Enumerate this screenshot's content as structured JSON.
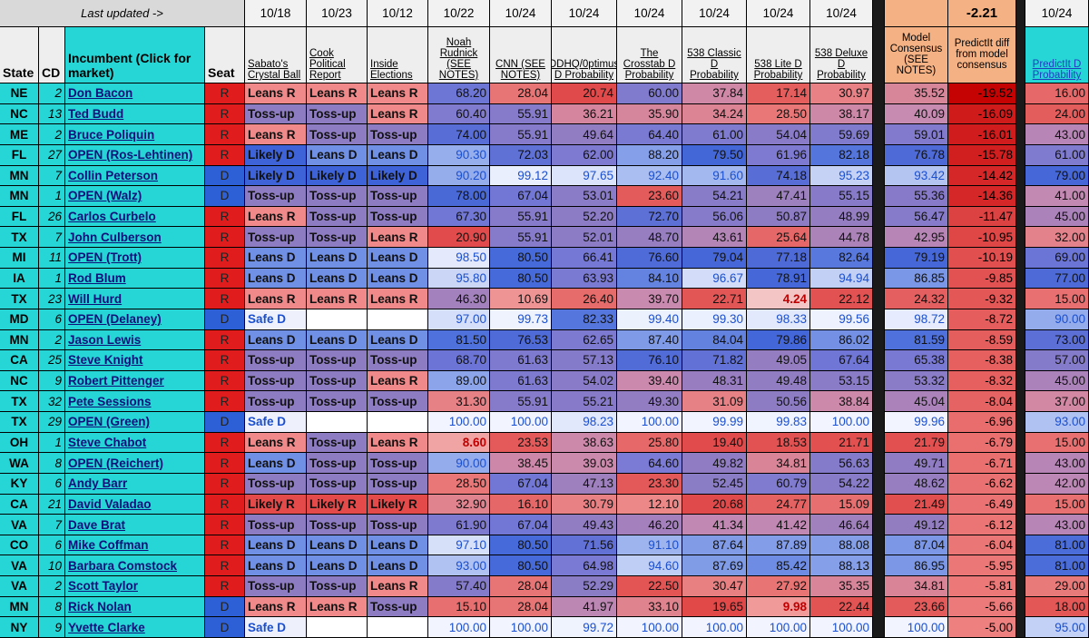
{
  "header": {
    "last_updated": "Last updated ->",
    "source_dates": [
      "10/18",
      "10/23",
      "10/12",
      "10/22",
      "10/24",
      "10/24",
      "10/24",
      "10/24",
      "10/24",
      "10/24"
    ],
    "consensus_diff": -2.21,
    "predictit_date": "10/24"
  },
  "columns": [
    "State",
    "CD",
    "Incumbent (Click for market)",
    "Seat",
    "Sabato's Crystal Ball",
    "Cook Political Report",
    "Inside Elections",
    "Noah Rudnick (SEE NOTES)",
    "CNN (SEE NOTES)",
    "DDHQ/0ptimus D Probability",
    "The Crosstab D Probability",
    "538 Classic D Probability",
    "538 Lite D Probability",
    "538 Deluxe D Probability",
    "Model Consensus (SEE NOTES)",
    "PredictIt diff from model consensus",
    "PredictIt D Probability"
  ],
  "rows": [
    [
      "NE",
      2,
      "Don Bacon",
      "R",
      "Leans R",
      "Leans R",
      "Leans R",
      "68.20",
      "28.04",
      "20.74",
      "60.00",
      "37.84",
      "17.14",
      "30.97",
      "35.52",
      "-19.52",
      "16.00"
    ],
    [
      "NC",
      13,
      "Ted Budd",
      "R",
      "Toss-up",
      "Toss-up",
      "Leans R",
      "60.40",
      "55.91",
      "36.21",
      "35.90",
      "34.24",
      "28.50",
      "38.17",
      "40.09",
      "-16.09",
      "24.00"
    ],
    [
      "ME",
      2,
      "Bruce Poliquin",
      "R",
      "Leans R",
      "Toss-up",
      "Toss-up",
      "74.00",
      "55.91",
      "49.64",
      "64.40",
      "61.00",
      "54.04",
      "59.69",
      "59.01",
      "-16.01",
      "43.00"
    ],
    [
      "FL",
      27,
      "OPEN (Ros-Lehtinen)",
      "R",
      "Likely D",
      "Leans D",
      "Leans D",
      "90.30",
      "72.03",
      "62.00",
      "88.20",
      "79.50",
      "61.96",
      "82.18",
      "76.78",
      "-15.78",
      "61.00"
    ],
    [
      "MN",
      7,
      "Collin Peterson",
      "D",
      "Likely D",
      "Likely D",
      "Likely D",
      "90.20",
      "99.12",
      "97.65",
      "92.40",
      "91.60",
      "74.18",
      "95.23",
      "93.42",
      "-14.42",
      "79.00"
    ],
    [
      "MN",
      1,
      "OPEN (Walz)",
      "D",
      "Toss-up",
      "Toss-up",
      "Toss-up",
      "78.00",
      "67.04",
      "53.01",
      "23.60",
      "54.21",
      "47.41",
      "55.15",
      "55.36",
      "-14.36",
      "41.00"
    ],
    [
      "FL",
      26,
      "Carlos Curbelo",
      "R",
      "Leans R",
      "Toss-up",
      "Toss-up",
      "67.30",
      "55.91",
      "52.20",
      "72.70",
      "56.06",
      "50.87",
      "48.99",
      "56.47",
      "-11.47",
      "45.00"
    ],
    [
      "TX",
      7,
      "John Culberson",
      "R",
      "Toss-up",
      "Toss-up",
      "Leans R",
      "20.90",
      "55.91",
      "52.01",
      "48.70",
      "43.61",
      "25.64",
      "44.78",
      "42.95",
      "-10.95",
      "32.00"
    ],
    [
      "MI",
      11,
      "OPEN (Trott)",
      "R",
      "Leans D",
      "Leans D",
      "Leans D",
      "98.50",
      "80.50",
      "66.41",
      "76.60",
      "79.04",
      "77.18",
      "82.64",
      "79.19",
      "-10.19",
      "69.00"
    ],
    [
      "IA",
      1,
      "Rod Blum",
      "R",
      "Leans D",
      "Leans D",
      "Leans D",
      "95.80",
      "80.50",
      "63.93",
      "84.10",
      "96.67",
      "78.91",
      "94.94",
      "86.85",
      "-9.85",
      "77.00"
    ],
    [
      "TX",
      23,
      "Will Hurd",
      "R",
      "Leans R",
      "Leans R",
      "Leans R",
      "46.30",
      "10.69",
      "26.40",
      "39.70",
      "22.71",
      "4.24",
      "22.12",
      "24.32",
      "-9.32",
      "15.00"
    ],
    [
      "MD",
      6,
      "OPEN (Delaney)",
      "D",
      "Safe D",
      null,
      null,
      "97.00",
      "99.73",
      "82.33",
      "99.40",
      "99.30",
      "98.33",
      "99.56",
      "98.72",
      "-8.72",
      "90.00"
    ],
    [
      "MN",
      2,
      "Jason Lewis",
      "R",
      "Leans D",
      "Leans D",
      "Leans D",
      "81.50",
      "76.53",
      "62.65",
      "87.40",
      "84.04",
      "79.86",
      "86.02",
      "81.59",
      "-8.59",
      "73.00"
    ],
    [
      "CA",
      25,
      "Steve Knight",
      "R",
      "Toss-up",
      "Toss-up",
      "Toss-up",
      "68.70",
      "61.63",
      "57.13",
      "76.10",
      "71.82",
      "49.05",
      "67.64",
      "65.38",
      "-8.38",
      "57.00"
    ],
    [
      "NC",
      9,
      "Robert Pittenger",
      "R",
      "Toss-up",
      "Toss-up",
      "Leans R",
      "89.00",
      "61.63",
      "54.02",
      "39.40",
      "48.31",
      "49.48",
      "53.15",
      "53.32",
      "-8.32",
      "45.00"
    ],
    [
      "TX",
      32,
      "Pete Sessions",
      "R",
      "Toss-up",
      "Toss-up",
      "Toss-up",
      "31.30",
      "55.91",
      "55.21",
      "49.30",
      "31.09",
      "50.56",
      "38.84",
      "45.04",
      "-8.04",
      "37.00"
    ],
    [
      "TX",
      29,
      "OPEN (Green)",
      "D",
      "Safe D",
      null,
      null,
      "100.00",
      "100.00",
      "98.23",
      "100.00",
      "99.99",
      "99.83",
      "100.00",
      "99.96",
      "-6.96",
      "93.00"
    ],
    [
      "OH",
      1,
      "Steve Chabot",
      "R",
      "Leans R",
      "Toss-up",
      "Leans R",
      "8.60",
      "23.53",
      "38.63",
      "25.80",
      "19.40",
      "18.53",
      "21.71",
      "21.79",
      "-6.79",
      "15.00"
    ],
    [
      "WA",
      8,
      "OPEN (Reichert)",
      "R",
      "Leans D",
      "Toss-up",
      "Toss-up",
      "90.00",
      "38.45",
      "39.03",
      "64.60",
      "49.82",
      "34.81",
      "56.63",
      "49.71",
      "-6.71",
      "43.00"
    ],
    [
      "KY",
      6,
      "Andy Barr",
      "R",
      "Toss-up",
      "Toss-up",
      "Toss-up",
      "28.50",
      "67.04",
      "47.13",
      "23.30",
      "52.45",
      "60.79",
      "54.22",
      "48.62",
      "-6.62",
      "42.00"
    ],
    [
      "CA",
      21,
      "David Valadao",
      "R",
      "Likely R",
      "Likely R",
      "Likely R",
      "32.90",
      "16.10",
      "30.79",
      "12.10",
      "20.68",
      "24.77",
      "15.09",
      "21.49",
      "-6.49",
      "15.00"
    ],
    [
      "VA",
      7,
      "Dave Brat",
      "R",
      "Toss-up",
      "Toss-up",
      "Toss-up",
      "61.90",
      "67.04",
      "49.43",
      "46.20",
      "41.34",
      "41.42",
      "46.64",
      "49.12",
      "-6.12",
      "43.00"
    ],
    [
      "CO",
      6,
      "Mike Coffman",
      "R",
      "Leans D",
      "Leans D",
      "Leans D",
      "97.10",
      "80.50",
      "71.56",
      "91.10",
      "87.64",
      "87.89",
      "88.08",
      "87.04",
      "-6.04",
      "81.00"
    ],
    [
      "VA",
      10,
      "Barbara Comstock",
      "R",
      "Leans D",
      "Leans D",
      "Leans D",
      "93.00",
      "80.50",
      "64.98",
      "94.60",
      "87.69",
      "85.42",
      "88.13",
      "86.95",
      "-5.95",
      "81.00"
    ],
    [
      "VA",
      2,
      "Scott Taylor",
      "R",
      "Toss-up",
      "Toss-up",
      "Leans R",
      "57.40",
      "28.04",
      "52.29",
      "22.50",
      "30.47",
      "27.92",
      "35.35",
      "34.81",
      "-5.81",
      "29.00"
    ],
    [
      "MN",
      8,
      "Rick Nolan",
      "D",
      "Leans R",
      "Leans R",
      "Toss-up",
      "15.10",
      "28.04",
      "41.97",
      "33.10",
      "19.65",
      "9.98",
      "22.44",
      "23.66",
      "-5.66",
      "18.00"
    ],
    [
      "NY",
      9,
      "Yvette Clarke",
      "D",
      "Safe D",
      null,
      null,
      "100.00",
      "100.00",
      "99.72",
      "100.00",
      "100.00",
      "100.00",
      "100.00",
      "100.00",
      "-5.00",
      "95.00"
    ]
  ],
  "rating_colors": {
    "Leans R": "#f08a8a",
    "Likely R": "#e44a4a",
    "Toss-up": "#8e7cc3",
    "Leans D": "#7090e6",
    "Likely D": "#3e63d8",
    "Safe D": "#eef1fb"
  },
  "seat_colors": {
    "R": "#e01c1c",
    "D": "#2d5fd6"
  }
}
